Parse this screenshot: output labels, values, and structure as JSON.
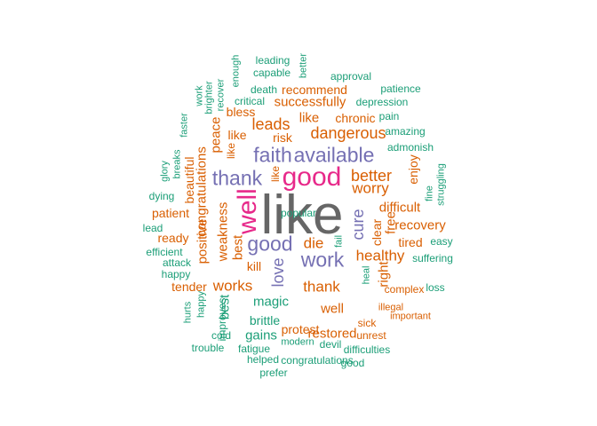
{
  "colors": {
    "teal": "#1b9e77",
    "orange": "#d95f02",
    "purple": "#7570b3",
    "pink": "#e7298a",
    "gray": "#666666"
  },
  "words": [
    {
      "text": "like",
      "color": "gray",
      "orientation": "horizontal"
    },
    {
      "text": "good",
      "color": "pink",
      "orientation": "horizontal"
    },
    {
      "text": "well",
      "color": "pink",
      "orientation": "vertical"
    },
    {
      "text": "faith",
      "color": "purple",
      "orientation": "horizontal"
    },
    {
      "text": "available",
      "color": "purple",
      "orientation": "horizontal"
    },
    {
      "text": "thank",
      "color": "purple",
      "orientation": "horizontal"
    },
    {
      "text": "good",
      "color": "purple",
      "orientation": "horizontal"
    },
    {
      "text": "work",
      "color": "purple",
      "orientation": "horizontal"
    },
    {
      "text": "love",
      "color": "purple",
      "orientation": "vertical"
    },
    {
      "text": "cure",
      "color": "purple",
      "orientation": "vertical"
    },
    {
      "text": "leading",
      "color": "teal",
      "orientation": "horizontal"
    },
    {
      "text": "capable",
      "color": "teal",
      "orientation": "horizontal"
    },
    {
      "text": "better",
      "color": "teal",
      "orientation": "vertical"
    },
    {
      "text": "enough",
      "color": "teal",
      "orientation": "vertical"
    },
    {
      "text": "approval",
      "color": "teal",
      "orientation": "horizontal"
    },
    {
      "text": "death",
      "color": "teal",
      "orientation": "horizontal"
    },
    {
      "text": "recommend",
      "color": "orange",
      "orientation": "horizontal"
    },
    {
      "text": "patience",
      "color": "teal",
      "orientation": "horizontal"
    },
    {
      "text": "work",
      "color": "teal",
      "orientation": "vertical"
    },
    {
      "text": "brighter",
      "color": "teal",
      "orientation": "vertical"
    },
    {
      "text": "recover",
      "color": "teal",
      "orientation": "vertical"
    },
    {
      "text": "critical",
      "color": "teal",
      "orientation": "horizontal"
    },
    {
      "text": "successfully",
      "color": "orange",
      "orientation": "horizontal"
    },
    {
      "text": "depression",
      "color": "teal",
      "orientation": "horizontal"
    },
    {
      "text": "bless",
      "color": "orange",
      "orientation": "horizontal"
    },
    {
      "text": "faster",
      "color": "teal",
      "orientation": "vertical"
    },
    {
      "text": "like",
      "color": "orange",
      "orientation": "horizontal"
    },
    {
      "text": "chronic",
      "color": "orange",
      "orientation": "horizontal"
    },
    {
      "text": "pain",
      "color": "teal",
      "orientation": "horizontal"
    },
    {
      "text": "peace",
      "color": "orange",
      "orientation": "vertical"
    },
    {
      "text": "leads",
      "color": "orange",
      "orientation": "horizontal"
    },
    {
      "text": "dangerous",
      "color": "orange",
      "orientation": "horizontal"
    },
    {
      "text": "amazing",
      "color": "teal",
      "orientation": "horizontal"
    },
    {
      "text": "like",
      "color": "orange",
      "orientation": "horizontal"
    },
    {
      "text": "risk",
      "color": "orange",
      "orientation": "horizontal"
    },
    {
      "text": "admonish",
      "color": "teal",
      "orientation": "horizontal"
    },
    {
      "text": "glory",
      "color": "teal",
      "orientation": "vertical"
    },
    {
      "text": "breaks",
      "color": "teal",
      "orientation": "vertical"
    },
    {
      "text": "congratulations",
      "color": "orange",
      "orientation": "vertical"
    },
    {
      "text": "like",
      "color": "orange",
      "orientation": "vertical"
    },
    {
      "text": "like",
      "color": "orange",
      "orientation": "vertical"
    },
    {
      "text": "better",
      "color": "orange",
      "orientation": "horizontal"
    },
    {
      "text": "enjoy",
      "color": "orange",
      "orientation": "vertical"
    },
    {
      "text": "beautiful",
      "color": "orange",
      "orientation": "vertical"
    },
    {
      "text": "worry",
      "color": "orange",
      "orientation": "horizontal"
    },
    {
      "text": "struggling",
      "color": "teal",
      "orientation": "vertical"
    },
    {
      "text": "fine",
      "color": "teal",
      "orientation": "vertical"
    },
    {
      "text": "dying",
      "color": "teal",
      "orientation": "horizontal"
    },
    {
      "text": "difficult",
      "color": "orange",
      "orientation": "horizontal"
    },
    {
      "text": "patient",
      "color": "orange",
      "orientation": "horizontal"
    },
    {
      "text": "positive",
      "color": "orange",
      "orientation": "vertical"
    },
    {
      "text": "weakness",
      "color": "orange",
      "orientation": "vertical"
    },
    {
      "text": "free",
      "color": "orange",
      "orientation": "vertical"
    },
    {
      "text": "recovery",
      "color": "orange",
      "orientation": "horizontal"
    },
    {
      "text": "lead",
      "color": "teal",
      "orientation": "horizontal"
    },
    {
      "text": "best",
      "color": "orange",
      "orientation": "vertical"
    },
    {
      "text": "ready",
      "color": "orange",
      "orientation": "horizontal"
    },
    {
      "text": "die",
      "color": "orange",
      "orientation": "horizontal"
    },
    {
      "text": "clear",
      "color": "orange",
      "orientation": "vertical"
    },
    {
      "text": "tired",
      "color": "orange",
      "orientation": "horizontal"
    },
    {
      "text": "easy",
      "color": "teal",
      "orientation": "horizontal"
    },
    {
      "text": "efficient",
      "color": "teal",
      "orientation": "horizontal"
    },
    {
      "text": "fail",
      "color": "teal",
      "orientation": "vertical"
    },
    {
      "text": "healthy",
      "color": "orange",
      "orientation": "horizontal"
    },
    {
      "text": "suffering",
      "color": "teal",
      "orientation": "horizontal"
    },
    {
      "text": "attack",
      "color": "teal",
      "orientation": "horizontal"
    },
    {
      "text": "kill",
      "color": "orange",
      "orientation": "horizontal"
    },
    {
      "text": "happy",
      "color": "teal",
      "orientation": "horizontal"
    },
    {
      "text": "heal",
      "color": "teal",
      "orientation": "vertical"
    },
    {
      "text": "right",
      "color": "orange",
      "orientation": "vertical"
    },
    {
      "text": "tender",
      "color": "orange",
      "orientation": "horizontal"
    },
    {
      "text": "works",
      "color": "orange",
      "orientation": "horizontal"
    },
    {
      "text": "thank",
      "color": "orange",
      "orientation": "horizontal"
    },
    {
      "text": "complex",
      "color": "orange",
      "orientation": "horizontal"
    },
    {
      "text": "loss",
      "color": "teal",
      "orientation": "horizontal"
    },
    {
      "text": "magic",
      "color": "teal",
      "orientation": "horizontal"
    },
    {
      "text": "illegal",
      "color": "orange",
      "orientation": "horizontal"
    },
    {
      "text": "hurts",
      "color": "teal",
      "orientation": "vertical"
    },
    {
      "text": "happy",
      "color": "teal",
      "orientation": "vertical"
    },
    {
      "text": "best",
      "color": "teal",
      "orientation": "vertical"
    },
    {
      "text": "well",
      "color": "orange",
      "orientation": "horizontal"
    },
    {
      "text": "important",
      "color": "orange",
      "orientation": "horizontal"
    },
    {
      "text": "improves",
      "color": "teal",
      "orientation": "vertical"
    },
    {
      "text": "brittle",
      "color": "teal",
      "orientation": "horizontal"
    },
    {
      "text": "protest",
      "color": "orange",
      "orientation": "horizontal"
    },
    {
      "text": "sick",
      "color": "orange",
      "orientation": "horizontal"
    },
    {
      "text": "cold",
      "color": "teal",
      "orientation": "horizontal"
    },
    {
      "text": "gains",
      "color": "teal",
      "orientation": "horizontal"
    },
    {
      "text": "restored",
      "color": "orange",
      "orientation": "horizontal"
    },
    {
      "text": "unrest",
      "color": "orange",
      "orientation": "horizontal"
    },
    {
      "text": "trouble",
      "color": "teal",
      "orientation": "horizontal"
    },
    {
      "text": "modern",
      "color": "teal",
      "orientation": "horizontal"
    },
    {
      "text": "devil",
      "color": "teal",
      "orientation": "horizontal"
    },
    {
      "text": "fatigue",
      "color": "teal",
      "orientation": "horizontal"
    },
    {
      "text": "difficulties",
      "color": "teal",
      "orientation": "horizontal"
    },
    {
      "text": "helped",
      "color": "teal",
      "orientation": "horizontal"
    },
    {
      "text": "congratulations",
      "color": "teal",
      "orientation": "horizontal"
    },
    {
      "text": "good",
      "color": "teal",
      "orientation": "horizontal"
    },
    {
      "text": "prefer",
      "color": "teal",
      "orientation": "horizontal"
    },
    {
      "text": "popular",
      "color": "teal",
      "orientation": "horizontal"
    }
  ]
}
